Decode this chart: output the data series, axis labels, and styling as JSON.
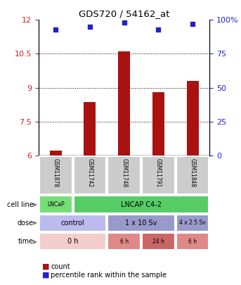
{
  "title": "GDS720 / 54162_at",
  "samples": [
    "GSM11878",
    "GSM11742",
    "GSM11748",
    "GSM11791",
    "GSM11848"
  ],
  "bar_values": [
    6.2,
    8.35,
    10.6,
    8.8,
    9.3
  ],
  "percentile_values": [
    93,
    95,
    98,
    93,
    97
  ],
  "bar_color": "#aa1111",
  "dot_color": "#2222cc",
  "ylim_left": [
    6,
    12
  ],
  "ylim_right": [
    0,
    100
  ],
  "yticks_left": [
    6,
    7.5,
    9,
    10.5,
    12
  ],
  "yticks_right": [
    0,
    25,
    50,
    75,
    100
  ],
  "ytick_labels_left": [
    "6",
    "7.5",
    "9",
    "10.5",
    "12"
  ],
  "ytick_labels_right": [
    "0",
    "25",
    "50",
    "75",
    "100%"
  ],
  "cell_line_data": [
    [
      "LNCaP",
      1,
      "#77dd77"
    ],
    [
      "LNCAP C4-2",
      4,
      "#55cc66"
    ]
  ],
  "dose_data": [
    [
      "control",
      2,
      "#bbbbee"
    ],
    [
      "1 x 10 Sv",
      2,
      "#9999cc"
    ],
    [
      "4 x 2.5 Sv",
      1,
      "#9999cc"
    ]
  ],
  "time_data": [
    [
      "0 h",
      2,
      "#f5cccc"
    ],
    [
      "6 h",
      1,
      "#e08888"
    ],
    [
      "24 h",
      1,
      "#cc6666"
    ],
    [
      "6 h",
      1,
      "#e08888"
    ]
  ],
  "sample_box_color": "#cccccc",
  "row_label_color": "#333333",
  "bar_width": 0.35
}
